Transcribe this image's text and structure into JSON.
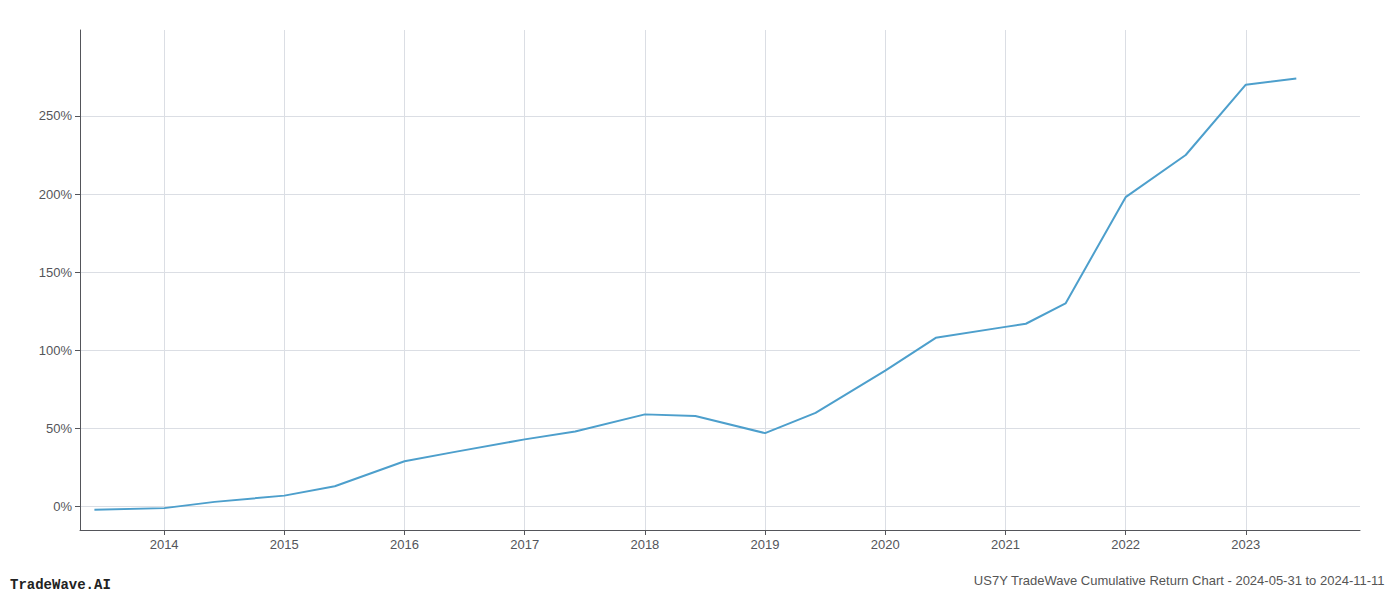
{
  "chart_data": {
    "type": "line",
    "title": "US7Y TradeWave Cumulative Return Chart - 2024-05-31 to 2024-11-11",
    "annotations": [
      "TradeWave.AI"
    ],
    "color": "#4d9fcc",
    "x": [
      2013.42,
      2014.0,
      2014.42,
      2015.0,
      2015.42,
      2016.0,
      2016.42,
      2017.0,
      2017.42,
      2018.0,
      2018.42,
      2019.0,
      2019.42,
      2020.0,
      2020.42,
      2021.0,
      2021.17,
      2021.5,
      2022.0,
      2022.5,
      2023.0,
      2023.42
    ],
    "values": [
      -2,
      -1,
      3,
      7,
      13,
      29,
      35,
      43,
      48,
      59,
      58,
      47,
      60,
      87,
      108,
      115,
      117,
      130,
      198,
      225,
      270,
      274
    ],
    "xlim": [
      2013.3,
      2023.95
    ],
    "ylim": [
      -15,
      305
    ],
    "xticks": [
      2014,
      2015,
      2016,
      2017,
      2018,
      2019,
      2020,
      2021,
      2022,
      2023
    ],
    "yticks": [
      {
        "value": 0,
        "label": "0%"
      },
      {
        "value": 50,
        "label": "50%"
      },
      {
        "value": 100,
        "label": "100%"
      },
      {
        "value": 150,
        "label": "150%"
      },
      {
        "value": 200,
        "label": "200%"
      },
      {
        "value": 250,
        "label": "250%"
      }
    ],
    "grid": true
  }
}
